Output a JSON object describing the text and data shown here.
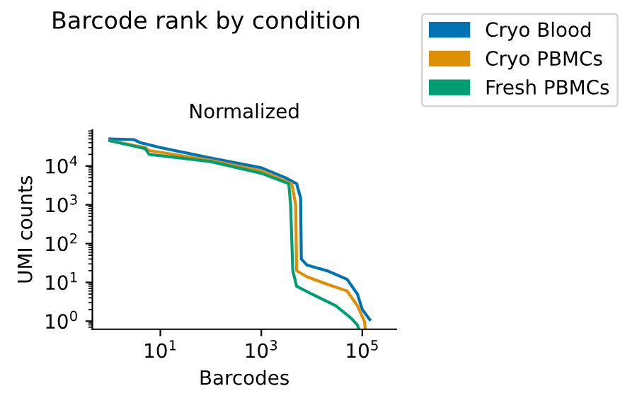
{
  "chart_data": {
    "type": "line",
    "title": "Barcode rank by condition",
    "subtitle": "Normalized",
    "xlabel": "Barcodes",
    "ylabel": "UMI counts",
    "log": "xy",
    "legend": "top right",
    "grid": false,
    "xlim": [
      0.45,
      470000
    ],
    "ylim": [
      0.62,
      85000
    ],
    "xticks": [
      {
        "value": 10,
        "label": "10$^{1}$"
      },
      {
        "value": 1000,
        "label": "10$^{3}$"
      },
      {
        "value": 100000,
        "label": "10$^{5}$"
      }
    ],
    "yticks": [
      {
        "value": 1,
        "label": "10$^{0}$"
      },
      {
        "value": 10,
        "label": "10$^{1}$"
      },
      {
        "value": 100,
        "label": "10$^{2}$"
      },
      {
        "value": 1000,
        "label": "10$^{3}$"
      },
      {
        "value": 10000,
        "label": "10$^{4}$"
      }
    ],
    "series": [
      {
        "name": "Cryo Blood",
        "color": "#0173b2",
        "x": [
          1,
          3,
          4,
          10,
          100,
          1000,
          3000,
          5000,
          6000,
          6200,
          8000,
          20000,
          50000,
          80000,
          100000,
          140000
        ],
        "values": [
          50000,
          48000,
          40000,
          30000,
          16000,
          9000,
          5000,
          3500,
          1500,
          40,
          28,
          20,
          12,
          5,
          2,
          1.1
        ]
      },
      {
        "name": "Cryo PBMCs",
        "color": "#de8f05",
        "x": [
          1,
          5,
          6,
          100,
          1000,
          4000,
          4800,
          5000,
          8000,
          20000,
          50000,
          80000,
          110000,
          115000
        ],
        "values": [
          45000,
          30000,
          25000,
          14000,
          7500,
          3500,
          1000,
          20,
          14,
          9,
          6,
          2.5,
          1,
          0.62
        ]
      },
      {
        "name": "Fresh PBMCs",
        "color": "#029e73",
        "x": [
          1,
          5,
          6,
          100,
          1000,
          3500,
          3800,
          4200,
          5000,
          10000,
          30000,
          60000,
          80000,
          85000
        ],
        "values": [
          45000,
          28000,
          20000,
          13000,
          6500,
          3500,
          1000,
          20,
          8,
          5,
          2.5,
          1.2,
          0.8,
          0.62
        ]
      }
    ]
  }
}
